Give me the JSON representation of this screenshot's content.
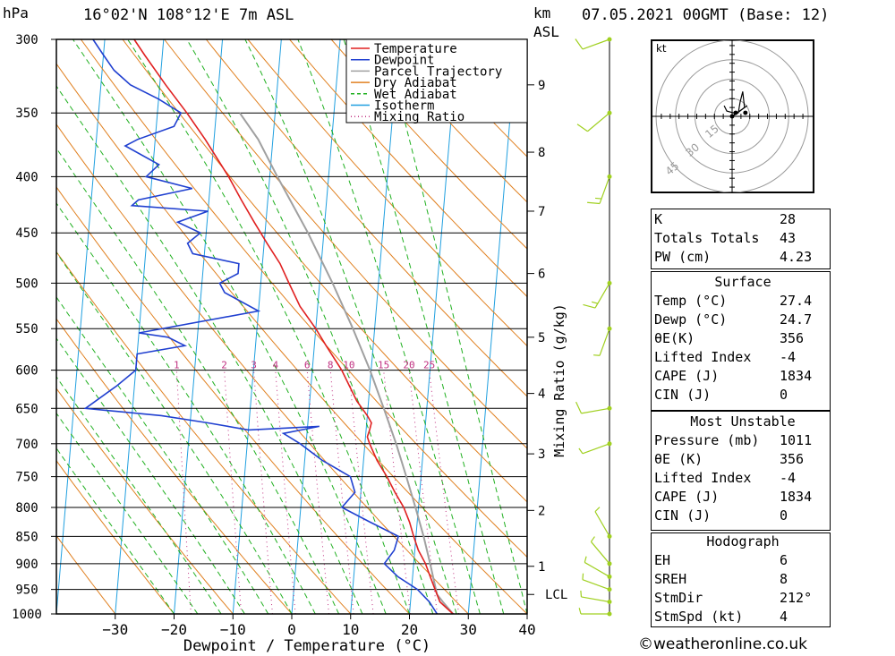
{
  "header": {
    "pressure_unit": "hPa",
    "location": "16°02'N 108°12'E 7m ASL",
    "km_label": "km",
    "asl_label": "ASL",
    "datetime": "07.05.2021 00GMT (Base: 12)"
  },
  "chart_data": {
    "type": "line",
    "xlabel": "Dewpoint / Temperature (°C)",
    "right_axis_label": "Mixing Ratio (g/kg)",
    "x_ticks": [
      -30,
      -20,
      -10,
      0,
      10,
      20,
      30,
      40
    ],
    "xlim": [
      -40,
      40
    ],
    "pressure_ticks": [
      300,
      350,
      400,
      450,
      500,
      550,
      600,
      650,
      700,
      750,
      800,
      850,
      900,
      950,
      1000
    ],
    "ylim": [
      1000,
      300
    ],
    "skew_per_decade": 103.4,
    "km_ticks": [
      {
        "label": "9",
        "p": 330
      },
      {
        "label": "8",
        "p": 380
      },
      {
        "label": "7",
        "p": 430
      },
      {
        "label": "6",
        "p": 490
      },
      {
        "label": "5",
        "p": 560
      },
      {
        "label": "4",
        "p": 630
      },
      {
        "label": "3",
        "p": 715
      },
      {
        "label": "2",
        "p": 805
      },
      {
        "label": "1",
        "p": 905
      },
      {
        "label": "LCL",
        "p": 960
      }
    ],
    "mixing_ratio_labels": [
      "1",
      "2",
      "3",
      "4",
      "6",
      "8",
      "10",
      "15",
      "20",
      "25"
    ],
    "mixing_ratio_values": [
      1,
      2,
      3,
      4,
      6,
      8,
      10,
      15,
      20,
      25
    ],
    "legend": [
      "Temperature",
      "Dewpoint",
      "Parcel Trajectory",
      "Dry Adiabat",
      "Wet Adiabat",
      "Isotherm",
      "Mixing Ratio"
    ],
    "colors": {
      "temperature": "#e02020",
      "dewpoint": "#2040d0",
      "parcel": "#a0a0a0",
      "dry_adiabat": "#e08020",
      "wet_adiabat": "#20b020",
      "isotherm": "#20a0e0",
      "mixing_ratio": "#c03080",
      "wind": "#a0d020"
    },
    "series": [
      {
        "name": "Temperature",
        "points": [
          [
            1000,
            27.4
          ],
          [
            975,
            25.0
          ],
          [
            950,
            24.0
          ],
          [
            925,
            23.0
          ],
          [
            900,
            22.0
          ],
          [
            875,
            20.6
          ],
          [
            850,
            19.6
          ],
          [
            825,
            18.7
          ],
          [
            800,
            17.5
          ],
          [
            775,
            15.8
          ],
          [
            750,
            14.2
          ],
          [
            725,
            12.3
          ],
          [
            700,
            10.8
          ],
          [
            690,
            10.3
          ],
          [
            680,
            10.6
          ],
          [
            670,
            10.8
          ],
          [
            660,
            10.0
          ],
          [
            640,
            8.0
          ],
          [
            600,
            5.0
          ],
          [
            570,
            2.0
          ],
          [
            550,
            0.0
          ],
          [
            525,
            -3.0
          ],
          [
            500,
            -5.2
          ],
          [
            480,
            -7.0
          ],
          [
            460,
            -9.5
          ],
          [
            440,
            -12.0
          ],
          [
            420,
            -14.5
          ],
          [
            400,
            -17.0
          ],
          [
            370,
            -21.5
          ],
          [
            350,
            -25.0
          ],
          [
            330,
            -29.0
          ],
          [
            310,
            -33.0
          ],
          [
            300,
            -35.0
          ]
        ]
      },
      {
        "name": "Dewpoint",
        "points": [
          [
            1000,
            24.7
          ],
          [
            975,
            23.2
          ],
          [
            950,
            21.0
          ],
          [
            925,
            17.5
          ],
          [
            900,
            15.0
          ],
          [
            875,
            16.5
          ],
          [
            850,
            17.0
          ],
          [
            825,
            12.0
          ],
          [
            800,
            7.0
          ],
          [
            775,
            9.0
          ],
          [
            750,
            8.0
          ],
          [
            725,
            3.0
          ],
          [
            700,
            -1.0
          ],
          [
            685,
            -4.0
          ],
          [
            680,
            -1.0
          ],
          [
            675,
            2.0
          ],
          [
            680,
            -10.0
          ],
          [
            670,
            -17.0
          ],
          [
            660,
            -25.0
          ],
          [
            650,
            -38.0
          ],
          [
            620,
            -33.0
          ],
          [
            600,
            -30.0
          ],
          [
            580,
            -30.0
          ],
          [
            570,
            -22.0
          ],
          [
            560,
            -25.0
          ],
          [
            555,
            -30.0
          ],
          [
            530,
            -10.0
          ],
          [
            510,
            -16.0
          ],
          [
            500,
            -17.0
          ],
          [
            490,
            -14.0
          ],
          [
            480,
            -14.0
          ],
          [
            470,
            -22.0
          ],
          [
            460,
            -23.0
          ],
          [
            450,
            -21.0
          ],
          [
            440,
            -25.0
          ],
          [
            430,
            -20.0
          ],
          [
            425,
            -33.0
          ],
          [
            420,
            -32.0
          ],
          [
            410,
            -23.0
          ],
          [
            400,
            -31.0
          ],
          [
            390,
            -29.0
          ],
          [
            375,
            -35.0
          ],
          [
            370,
            -33.0
          ],
          [
            360,
            -27.0
          ],
          [
            350,
            -26.0
          ],
          [
            340,
            -30.0
          ],
          [
            330,
            -35.0
          ],
          [
            320,
            -38.0
          ],
          [
            310,
            -40.0
          ],
          [
            300,
            -42.0
          ]
        ]
      },
      {
        "name": "Parcel Trajectory",
        "points": [
          [
            1000,
            27.4
          ],
          [
            975,
            25.5
          ],
          [
            960,
            24.4
          ],
          [
            900,
            22.8
          ],
          [
            850,
            21.3
          ],
          [
            800,
            19.5
          ],
          [
            750,
            17.5
          ],
          [
            700,
            15.3
          ],
          [
            650,
            12.7
          ],
          [
            600,
            9.8
          ],
          [
            550,
            6.3
          ],
          [
            500,
            2.2
          ],
          [
            450,
            -2.7
          ],
          [
            400,
            -8.7
          ],
          [
            370,
            -12.5
          ],
          [
            350,
            -16.0
          ]
        ]
      }
    ],
    "wind_barbs": [
      {
        "p": 1000,
        "dir": 270,
        "spd": 5
      },
      {
        "p": 975,
        "dir": 280,
        "spd": 5
      },
      {
        "p": 950,
        "dir": 290,
        "spd": 5
      },
      {
        "p": 925,
        "dir": 300,
        "spd": 5
      },
      {
        "p": 900,
        "dir": 320,
        "spd": 5
      },
      {
        "p": 850,
        "dir": 330,
        "spd": 5
      },
      {
        "p": 700,
        "dir": 250,
        "spd": 5
      },
      {
        "p": 650,
        "dir": 260,
        "spd": 10
      },
      {
        "p": 550,
        "dir": 200,
        "spd": 5
      },
      {
        "p": 500,
        "dir": 210,
        "spd": 15
      },
      {
        "p": 400,
        "dir": 200,
        "spd": 15
      },
      {
        "p": 350,
        "dir": 230,
        "spd": 10
      },
      {
        "p": 300,
        "dir": 250,
        "spd": 10
      }
    ]
  },
  "hodograph": {
    "unit": "kt",
    "ring_labels": [
      "15",
      "30",
      "45"
    ]
  },
  "indices": {
    "k_label": "K",
    "k": "28",
    "tt_label": "Totals Totals",
    "tt": "43",
    "pw_label": "PW (cm)",
    "pw": "4.23"
  },
  "surface": {
    "title": "Surface",
    "temp_label": "Temp (°C)",
    "temp": "27.4",
    "dewp_label": "Dewp (°C)",
    "dewp": "24.7",
    "thetae_label": "θE(K)",
    "thetae": "356",
    "li_label": "Lifted Index",
    "li": "-4",
    "cape_label": "CAPE (J)",
    "cape": "1834",
    "cin_label": "CIN (J)",
    "cin": "0"
  },
  "most_unstable": {
    "title": "Most Unstable",
    "pressure_label": "Pressure (mb)",
    "pressure": "1011",
    "thetae_label": "θE (K)",
    "thetae": "356",
    "li_label": "Lifted Index",
    "li": "-4",
    "cape_label": "CAPE (J)",
    "cape": "1834",
    "cin_label": "CIN (J)",
    "cin": "0"
  },
  "hodograph_table": {
    "title": "Hodograph",
    "eh_label": "EH",
    "eh": "6",
    "sreh_label": "SREH",
    "sreh": "8",
    "stmdir_label": "StmDir",
    "stmdir": "212°",
    "stmspd_label": "StmSpd (kt)",
    "stmspd": "4"
  },
  "credit": "©weatheronline.co.uk"
}
